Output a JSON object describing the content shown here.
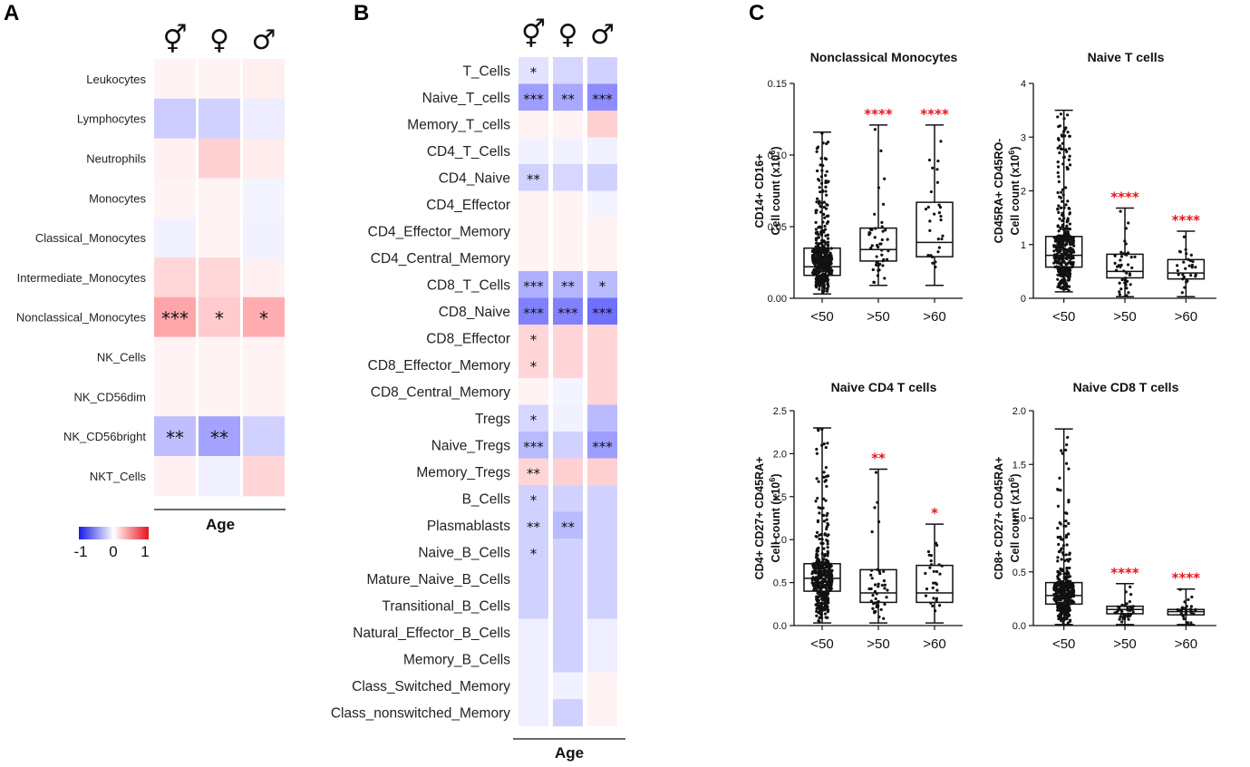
{
  "panels": {
    "a": "A",
    "b": "B",
    "c": "C"
  },
  "groups": [
    {
      "symbol": "⚥",
      "name": "all"
    },
    {
      "symbol": "♀",
      "name": "female"
    },
    {
      "symbol": "♂",
      "name": "male"
    }
  ],
  "age_label": "Age",
  "legend": {
    "min": "-1",
    "mid": "0",
    "max": "1",
    "colors": [
      "#1a1ae6",
      "#ffffff",
      "#e6141e"
    ]
  },
  "heatmap_a": {
    "rows": [
      {
        "label": "Leukocytes",
        "values": [
          0.05,
          0.05,
          0.07
        ],
        "stars": [
          "",
          "",
          ""
        ]
      },
      {
        "label": "Lymphocytes",
        "values": [
          -0.22,
          -0.2,
          -0.08
        ],
        "stars": [
          "",
          "",
          ""
        ]
      },
      {
        "label": "Neutrophils",
        "values": [
          0.06,
          0.2,
          0.08
        ],
        "stars": [
          "",
          "",
          ""
        ]
      },
      {
        "label": "Monocytes",
        "values": [
          0.05,
          0.05,
          -0.05
        ],
        "stars": [
          "",
          "",
          ""
        ]
      },
      {
        "label": "Classical_Monocytes",
        "values": [
          -0.06,
          0.05,
          -0.06
        ],
        "stars": [
          "",
          "",
          ""
        ]
      },
      {
        "label": "Intermediate_Monocytes",
        "values": [
          0.17,
          0.17,
          0.06
        ],
        "stars": [
          "",
          "",
          ""
        ]
      },
      {
        "label": "Nonclassical_Monocytes",
        "values": [
          0.38,
          0.22,
          0.35
        ],
        "stars": [
          "***",
          "*",
          "*"
        ]
      },
      {
        "label": "NK_Cells",
        "values": [
          0.05,
          0.05,
          0.05
        ],
        "stars": [
          "",
          "",
          ""
        ]
      },
      {
        "label": "NK_CD56dim",
        "values": [
          0.05,
          0.05,
          0.05
        ],
        "stars": [
          "",
          "",
          ""
        ]
      },
      {
        "label": "NK_CD56bright",
        "values": [
          -0.28,
          -0.4,
          -0.2
        ],
        "stars": [
          "**",
          "**",
          ""
        ]
      },
      {
        "label": "NKT_Cells",
        "values": [
          0.06,
          -0.06,
          0.18
        ],
        "stars": [
          "",
          "",
          ""
        ]
      }
    ]
  },
  "heatmap_b": {
    "rows": [
      {
        "label": "T_Cells",
        "values": [
          -0.12,
          -0.18,
          -0.2
        ],
        "stars": [
          "*",
          "",
          ""
        ]
      },
      {
        "label": "Naive_T_cells",
        "values": [
          -0.42,
          -0.38,
          -0.5
        ],
        "stars": [
          "***",
          "**",
          "***"
        ]
      },
      {
        "label": "Memory_T_cells",
        "values": [
          0.05,
          0.05,
          0.2
        ],
        "stars": [
          "",
          "",
          ""
        ]
      },
      {
        "label": "CD4_T_Cells",
        "values": [
          -0.06,
          -0.06,
          -0.06
        ],
        "stars": [
          "",
          "",
          ""
        ]
      },
      {
        "label": "CD4_Naive",
        "values": [
          -0.2,
          -0.18,
          -0.2
        ],
        "stars": [
          "**",
          "",
          ""
        ]
      },
      {
        "label": "CD4_Effector",
        "values": [
          0.05,
          0.05,
          -0.05
        ],
        "stars": [
          "",
          "",
          ""
        ]
      },
      {
        "label": "CD4_Effector_Memory",
        "values": [
          0.05,
          0.05,
          0.05
        ],
        "stars": [
          "",
          "",
          ""
        ]
      },
      {
        "label": "CD4_Central_Memory",
        "values": [
          0.05,
          0.05,
          0.05
        ],
        "stars": [
          "",
          "",
          ""
        ]
      },
      {
        "label": "CD8_T_Cells",
        "values": [
          -0.35,
          -0.32,
          -0.3
        ],
        "stars": [
          "***",
          "**",
          "*"
        ]
      },
      {
        "label": "CD8_Naive",
        "values": [
          -0.55,
          -0.55,
          -0.62
        ],
        "stars": [
          "***",
          "***",
          "***"
        ]
      },
      {
        "label": "CD8_Effector",
        "values": [
          0.18,
          0.18,
          0.18
        ],
        "stars": [
          "*",
          "",
          ""
        ]
      },
      {
        "label": "CD8_Effector_Memory",
        "values": [
          0.18,
          0.18,
          0.18
        ],
        "stars": [
          "*",
          "",
          ""
        ]
      },
      {
        "label": "CD8_Central_Memory",
        "values": [
          0.05,
          -0.05,
          0.18
        ],
        "stars": [
          "",
          "",
          ""
        ]
      },
      {
        "label": "Tregs",
        "values": [
          -0.18,
          -0.06,
          -0.3
        ],
        "stars": [
          "*",
          "",
          ""
        ]
      },
      {
        "label": "Naive_Tregs",
        "values": [
          -0.3,
          -0.2,
          -0.42
        ],
        "stars": [
          "***",
          "",
          "***"
        ]
      },
      {
        "label": "Memory_Tregs",
        "values": [
          0.18,
          0.2,
          0.2
        ],
        "stars": [
          "**",
          "",
          ""
        ]
      },
      {
        "label": "B_Cells",
        "values": [
          -0.2,
          -0.2,
          -0.2
        ],
        "stars": [
          "*",
          "",
          ""
        ]
      },
      {
        "label": "Plasmablasts",
        "values": [
          -0.2,
          -0.3,
          -0.2
        ],
        "stars": [
          "**",
          "**",
          ""
        ]
      },
      {
        "label": "Naive_B_Cells",
        "values": [
          -0.2,
          -0.2,
          -0.2
        ],
        "stars": [
          "*",
          "",
          ""
        ]
      },
      {
        "label": "Mature_Naive_B_Cells",
        "values": [
          -0.2,
          -0.2,
          -0.2
        ],
        "stars": [
          "",
          "",
          ""
        ]
      },
      {
        "label": "Transitional_B_Cells",
        "values": [
          -0.2,
          -0.2,
          -0.2
        ],
        "stars": [
          "",
          "",
          ""
        ]
      },
      {
        "label": "Natural_Effector_B_Cells",
        "values": [
          -0.07,
          -0.2,
          -0.07
        ],
        "stars": [
          "",
          "",
          ""
        ]
      },
      {
        "label": "Memory_B_Cells",
        "values": [
          -0.07,
          -0.2,
          -0.07
        ],
        "stars": [
          "",
          "",
          ""
        ]
      },
      {
        "label": "Class_Switched_Memory",
        "values": [
          -0.07,
          -0.06,
          0.05
        ],
        "stars": [
          "",
          "",
          ""
        ]
      },
      {
        "label": "Class_nonswitched_Memory",
        "values": [
          -0.07,
          -0.2,
          0.05
        ],
        "stars": [
          "",
          "",
          ""
        ]
      }
    ]
  },
  "chart_data": [
    {
      "type": "box",
      "title": "Nonclassical Monocytes",
      "ylabel_line1": "CD14+ CD16+",
      "ylabel_line2": "Cell count (x10",
      "ylabel_exp": "6",
      "ylabel_close": ")",
      "ylim": [
        0,
        0.15
      ],
      "yticks": [
        0,
        0.05,
        0.1,
        0.15
      ],
      "ytick_labels": [
        "0.00",
        "0.05",
        "0.10",
        "0.15"
      ],
      "categories": [
        "<50",
        ">50",
        ">60"
      ],
      "boxes": [
        {
          "min": 0.003,
          "q1": 0.016,
          "median": 0.022,
          "q3": 0.035,
          "max": 0.116,
          "n": 420
        },
        {
          "min": 0.009,
          "q1": 0.026,
          "median": 0.034,
          "q3": 0.049,
          "max": 0.121,
          "n": 45
        },
        {
          "min": 0.009,
          "q1": 0.029,
          "median": 0.039,
          "q3": 0.067,
          "max": 0.121,
          "n": 28
        }
      ],
      "significance": [
        "",
        "****",
        "****"
      ]
    },
    {
      "type": "box",
      "title": "Naive T cells",
      "ylabel_line1": "CD45RA+ CD45RO-",
      "ylabel_line2": "Cell count (x10",
      "ylabel_exp": "6",
      "ylabel_close": ")",
      "ylim": [
        0,
        4
      ],
      "yticks": [
        0,
        1,
        2,
        3,
        4
      ],
      "ytick_labels": [
        "0",
        "1",
        "2",
        "3",
        "4"
      ],
      "categories": [
        "<50",
        ">50",
        ">60"
      ],
      "boxes": [
        {
          "min": 0.12,
          "q1": 0.58,
          "median": 0.8,
          "q3": 1.15,
          "max": 3.5,
          "n": 420
        },
        {
          "min": 0.03,
          "q1": 0.38,
          "median": 0.5,
          "q3": 0.82,
          "max": 1.68,
          "n": 45
        },
        {
          "min": 0.03,
          "q1": 0.36,
          "median": 0.47,
          "q3": 0.72,
          "max": 1.25,
          "n": 28
        }
      ],
      "significance": [
        "",
        "****",
        "****"
      ]
    },
    {
      "type": "box",
      "title": "Naive CD4 T cells",
      "ylabel_line1": "CD4+ CD27+ CD45RA+",
      "ylabel_line2": "Cell count (x10",
      "ylabel_exp": "6",
      "ylabel_close": ")",
      "ylim": [
        0,
        2.5
      ],
      "yticks": [
        0,
        0.5,
        1.0,
        1.5,
        2.0,
        2.5
      ],
      "ytick_labels": [
        "0.0",
        "0.5",
        "1.0",
        "1.5",
        "2.0",
        "2.5"
      ],
      "categories": [
        "<50",
        ">50",
        ">60"
      ],
      "boxes": [
        {
          "min": 0.03,
          "q1": 0.4,
          "median": 0.55,
          "q3": 0.72,
          "max": 2.3,
          "n": 420
        },
        {
          "min": 0.03,
          "q1": 0.27,
          "median": 0.38,
          "q3": 0.65,
          "max": 1.82,
          "n": 45
        },
        {
          "min": 0.03,
          "q1": 0.27,
          "median": 0.38,
          "q3": 0.7,
          "max": 1.18,
          "n": 28
        }
      ],
      "significance": [
        "",
        "**",
        "*"
      ]
    },
    {
      "type": "box",
      "title": "Naive CD8 T cells",
      "ylabel_line1": "CD8+ CD27+ CD45RA+",
      "ylabel_line2": "Cell count (x10",
      "ylabel_exp": "6",
      "ylabel_close": ")",
      "ylim": [
        0,
        2.0
      ],
      "yticks": [
        0,
        0.5,
        1.0,
        1.5,
        2.0
      ],
      "ytick_labels": [
        "0.0",
        "0.5",
        "1.0",
        "1.5",
        "2.0"
      ],
      "categories": [
        "<50",
        ">50",
        ">60"
      ],
      "boxes": [
        {
          "min": 0.01,
          "q1": 0.2,
          "median": 0.28,
          "q3": 0.4,
          "max": 1.83,
          "n": 420
        },
        {
          "min": 0.01,
          "q1": 0.11,
          "median": 0.15,
          "q3": 0.18,
          "max": 0.39,
          "n": 45
        },
        {
          "min": 0.01,
          "q1": 0.1,
          "median": 0.13,
          "q3": 0.15,
          "max": 0.34,
          "n": 28
        }
      ],
      "significance": [
        "",
        "****",
        "****"
      ]
    }
  ]
}
